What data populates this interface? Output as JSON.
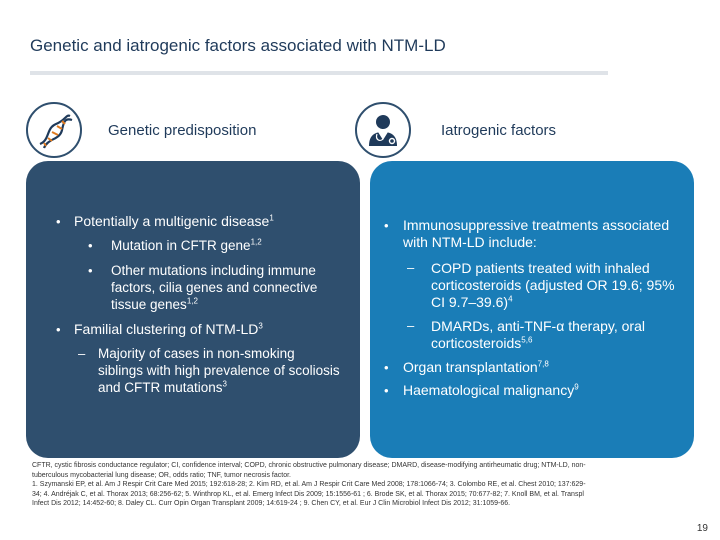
{
  "title": "Genetic and iatrogenic factors associated with NTM-LD",
  "left": {
    "heading": "Genetic predisposition",
    "item1": "Potentially a multigenic disease",
    "item1_sup": "1",
    "sub1": "Mutation in CFTR gene",
    "sub1_sup": "1,2",
    "sub2": "Other mutations including immune factors, cilia genes and connective tissue genes",
    "sub2_sup": "1,2",
    "item2": "Familial clustering of NTM-LD",
    "item2_sup": "3",
    "sub3": "Majority of cases in non-smoking siblings with high prevalence of scoliosis and CFTR mutations",
    "sub3_sup": "3"
  },
  "right": {
    "heading": "Iatrogenic factors",
    "item1": "Immunosuppressive treatments associated with NTM-LD include:",
    "sub1": "COPD patients treated with inhaled corticosteroids (adjusted OR 19.6; 95% CI 9.7–39.6)",
    "sub1_sup": "4",
    "sub2": "DMARDs, anti-TNF-α therapy, oral corticosteroids",
    "sub2_sup": "5,6",
    "item2": "Organ transplantation",
    "item2_sup": "7,8",
    "item3": "Haematological malignancy",
    "item3_sup": "9"
  },
  "refs": [
    "CFTR, cystic fibrosis conductance regulator; CI, confidence interval; COPD, chronic obstructive pulmonary disease; DMARD, disease-modifying antirheumatic drug; NTM-LD, non-",
    "tuberculous mycobacterial lung disease; OR, odds ratio; TNF, tumor necrosis factor.",
    "1. Szymanski EP, et al. Am J Respir Crit Care Med 2015; 192:618-28; 2. Kim RD, et al. Am J Respir Crit Care Med 2008; 178:1066-74; 3. Colombo RE, et al. Chest 2010; 137:629-",
    "34; 4. Andréjak C, et al. Thorax 2013; 68:256-62; 5. Winthrop KL, et al. Emerg Infect Dis 2009; 15:1556-61 ; 6. Brode SK, et al. Thorax 2015; 70:677-82; 7. Knoll BM, et al. Transpl",
    "Infect Dis 2012; 14:452-60; 8. Daley CL. Curr Opin Organ Transplant 2009; 14:619-24 ; 9. Chen CY, et al. Eur J Clin Microbiol Infect Dis 2012; 31:1059-66."
  ],
  "page_number": "19",
  "icons": {
    "left": "dna-icon",
    "right": "doctor-icon"
  },
  "colors": {
    "left_panel": "#2f4f6e",
    "right_panel": "#1a7db7",
    "title": "#1f3a5a"
  }
}
